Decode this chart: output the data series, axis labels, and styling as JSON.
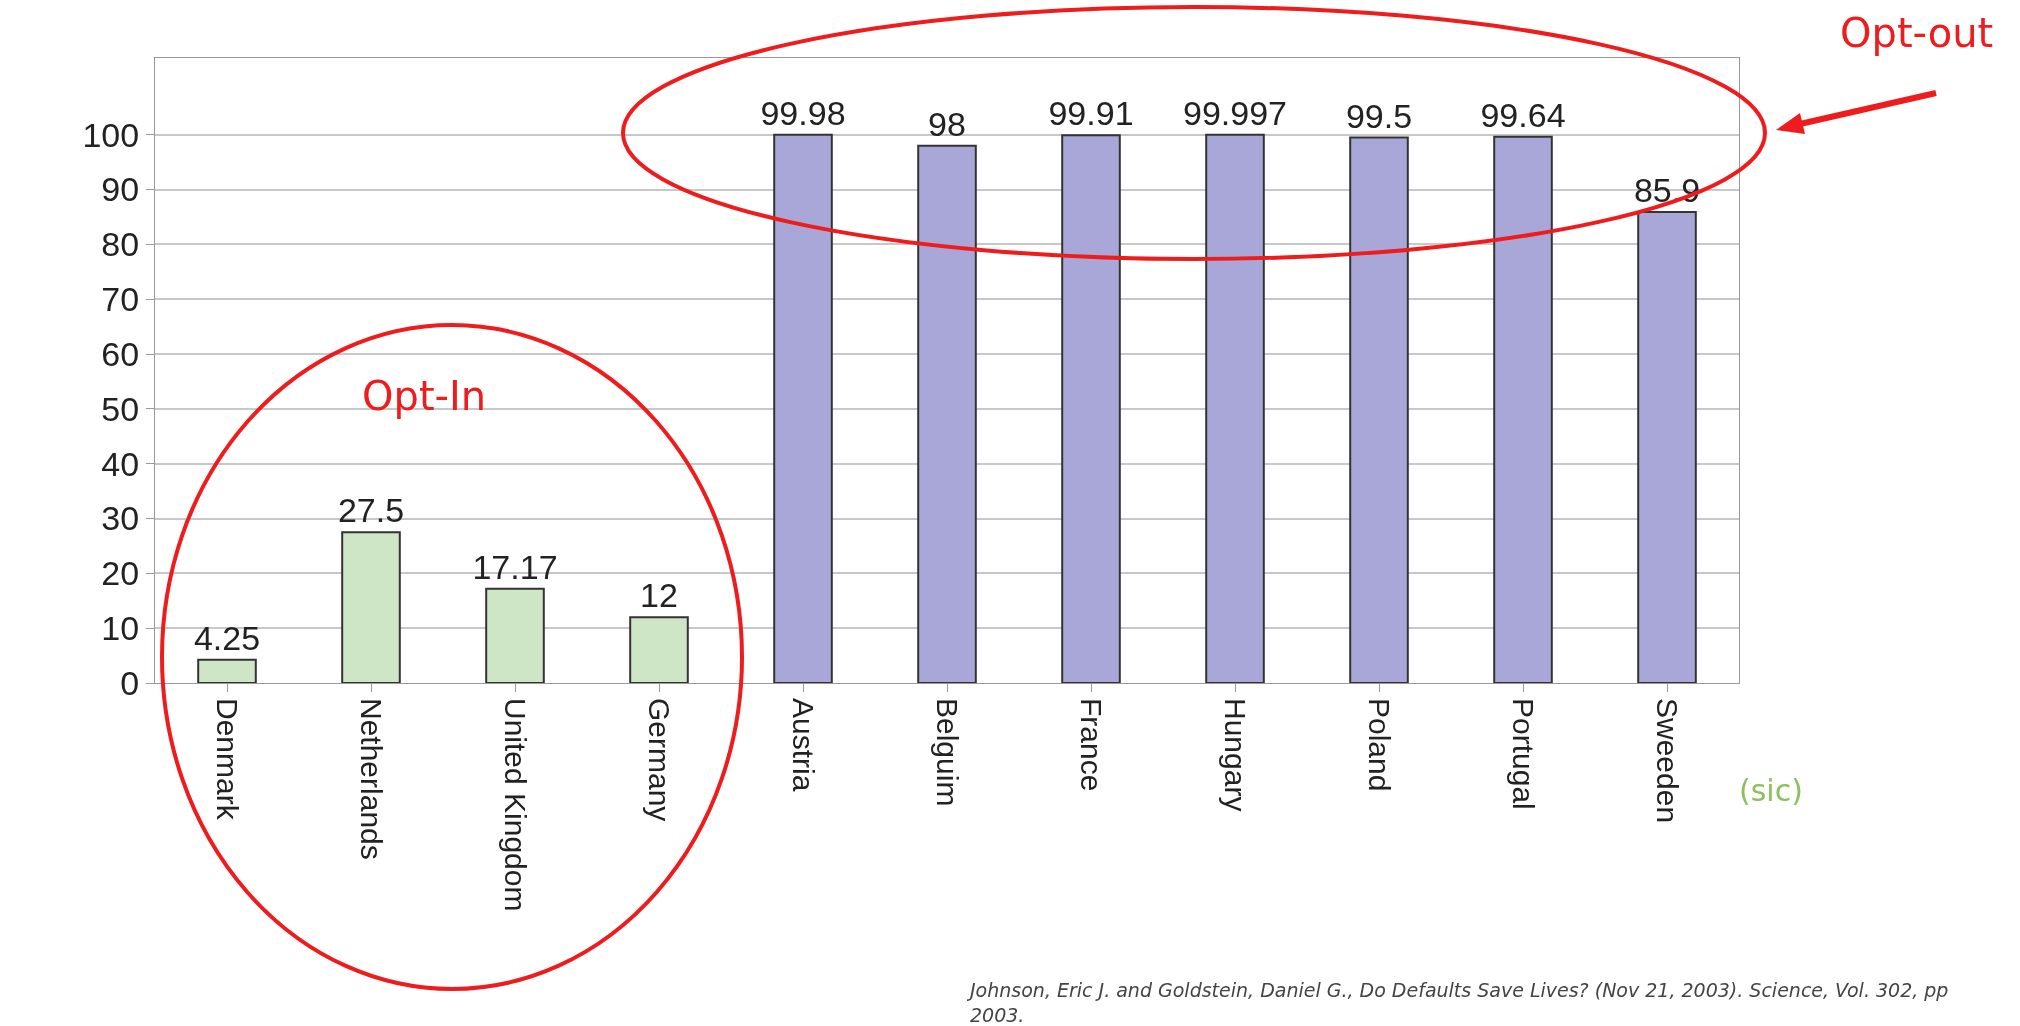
{
  "chart_data": {
    "type": "bar",
    "categories": [
      "Denmark",
      "Netherlands",
      "United Kingdom",
      "Germany",
      "Austria",
      "Belguim",
      "France",
      "Hungary",
      "Poland",
      "Portugal",
      "Sweeden"
    ],
    "values": [
      4.25,
      27.5,
      17.17,
      12,
      99.98,
      98,
      99.91,
      99.997,
      99.5,
      99.64,
      85.9
    ],
    "colors": [
      "#cfe6c6",
      "#cfe6c6",
      "#cfe6c6",
      "#cfe6c6",
      "#a9a7d7",
      "#a9a7d7",
      "#a9a7d7",
      "#a9a7d7",
      "#a9a7d7",
      "#a9a7d7",
      "#a9a7d7"
    ],
    "data_labels": true,
    "ylim": [
      0,
      114
    ],
    "yticks": [
      0,
      10,
      20,
      30,
      40,
      50,
      60,
      70,
      80,
      90,
      100
    ],
    "grid": "y",
    "legend": false,
    "annotations": [
      "Opt-out",
      "Opt-In",
      "(sic)",
      "Johnson, Eric J. and Goldstein, Daniel G., Do Defaults Save Lives? (Nov 21, 2003). Science, Vol. 302, pp\n2003."
    ]
  }
}
